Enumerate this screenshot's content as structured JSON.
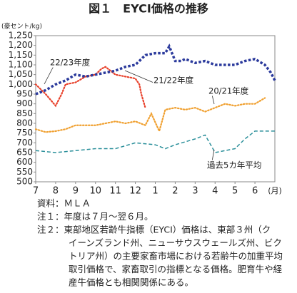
{
  "chart_data": {
    "type": "line",
    "title": "図１　EYCI価格の推移",
    "y_label": "(豪セント/kg)",
    "x_unit": "(月)",
    "xlim": [
      0,
      12
    ],
    "xticks": [
      {
        "value": 0,
        "label": "7"
      },
      {
        "value": 1,
        "label": "8"
      },
      {
        "value": 2,
        "label": "9"
      },
      {
        "value": 3,
        "label": "10"
      },
      {
        "value": 4,
        "label": "11"
      },
      {
        "value": 5,
        "label": "12"
      },
      {
        "value": 6,
        "label": "1"
      },
      {
        "value": 7,
        "label": "2"
      },
      {
        "value": 8,
        "label": "3"
      },
      {
        "value": 9,
        "label": "4"
      },
      {
        "value": 10,
        "label": "5"
      },
      {
        "value": 11,
        "label": "6"
      }
    ],
    "ylim": [
      500,
      1250
    ],
    "yticks": [
      500,
      550,
      600,
      650,
      700,
      750,
      800,
      850,
      900,
      950,
      {
        "value": 1000,
        "label": "1,000"
      },
      {
        "value": 1050,
        "label": "1,050"
      },
      {
        "value": 1100,
        "label": "1,100"
      },
      {
        "value": 1150,
        "label": "1,150"
      },
      {
        "value": 1200,
        "label": "1,200"
      },
      {
        "value": 1250,
        "label": "1,250"
      }
    ],
    "series": [
      {
        "name": "22/23年度",
        "color": "#e8402a",
        "line_style": "dotted",
        "x": [
          0,
          0.5,
          1,
          1.3,
          1.5,
          2,
          2.5,
          3,
          3.3,
          3.5,
          4,
          4.5,
          5,
          5.2,
          5.3,
          5.5
        ],
        "values": [
          1000,
          950,
          890,
          950,
          1000,
          1010,
          1040,
          1050,
          1080,
          1090,
          1050,
          1040,
          1030,
          1000,
          950,
          880
        ]
      },
      {
        "name": "21/22年度",
        "color": "#2b3a9c",
        "line_style": "squares",
        "x": [
          0,
          0.5,
          1,
          1.5,
          2,
          2.5,
          3,
          3.5,
          4,
          4.5,
          5,
          5.5,
          6,
          6.5,
          6.7,
          7,
          7.3,
          7.5,
          8,
          8.5,
          9,
          9.5,
          10,
          10.5,
          11,
          11.5,
          11.8,
          12
        ],
        "values": [
          950,
          970,
          1000,
          1020,
          1050,
          1040,
          1050,
          1060,
          1070,
          1090,
          1100,
          1150,
          1160,
          1160,
          1195,
          1120,
          1120,
          1130,
          1110,
          1120,
          1100,
          1100,
          1100,
          1120,
          1130,
          1100,
          1060,
          1020
        ]
      },
      {
        "name": "20/21年度",
        "color": "#f0a030",
        "line_style": "dotted",
        "x": [
          0,
          0.5,
          1,
          1.5,
          2,
          2.5,
          3,
          3.5,
          4,
          4.5,
          5,
          5.5,
          5.8,
          6.2,
          6.5,
          7,
          7.5,
          8,
          8.5,
          9,
          9.5,
          10,
          10.5,
          11,
          11.5
        ],
        "values": [
          770,
          755,
          760,
          770,
          790,
          790,
          790,
          800,
          810,
          800,
          810,
          790,
          850,
          760,
          870,
          880,
          870,
          880,
          860,
          880,
          900,
          890,
          900,
          900,
          930
        ]
      },
      {
        "name": "過去5カ年平均",
        "color": "#2a8f9a",
        "line_style": "dashed",
        "x": [
          0,
          1,
          2,
          3,
          4,
          5,
          6,
          6.5,
          7,
          8,
          8.5,
          9,
          10,
          10.5,
          11,
          12
        ],
        "values": [
          660,
          650,
          660,
          670,
          670,
          700,
          690,
          670,
          690,
          720,
          740,
          650,
          670,
          720,
          760,
          760
        ]
      }
    ],
    "notes": [
      "資料：ＭＬＡ",
      "注１：年度は７月～翌６月。",
      "注２：東部地区若齢牛指標（EYCI）価格は、東部３州（ク",
      "イーンズランド州、ニューサウスウェールズ州、ビク",
      "トリア州）の主要家畜市場における若齢牛の加重平均",
      "取引価格で、家畜取引の指標となる価格。肥育牛や経",
      "産牛価格とも相関関係にある。"
    ]
  }
}
